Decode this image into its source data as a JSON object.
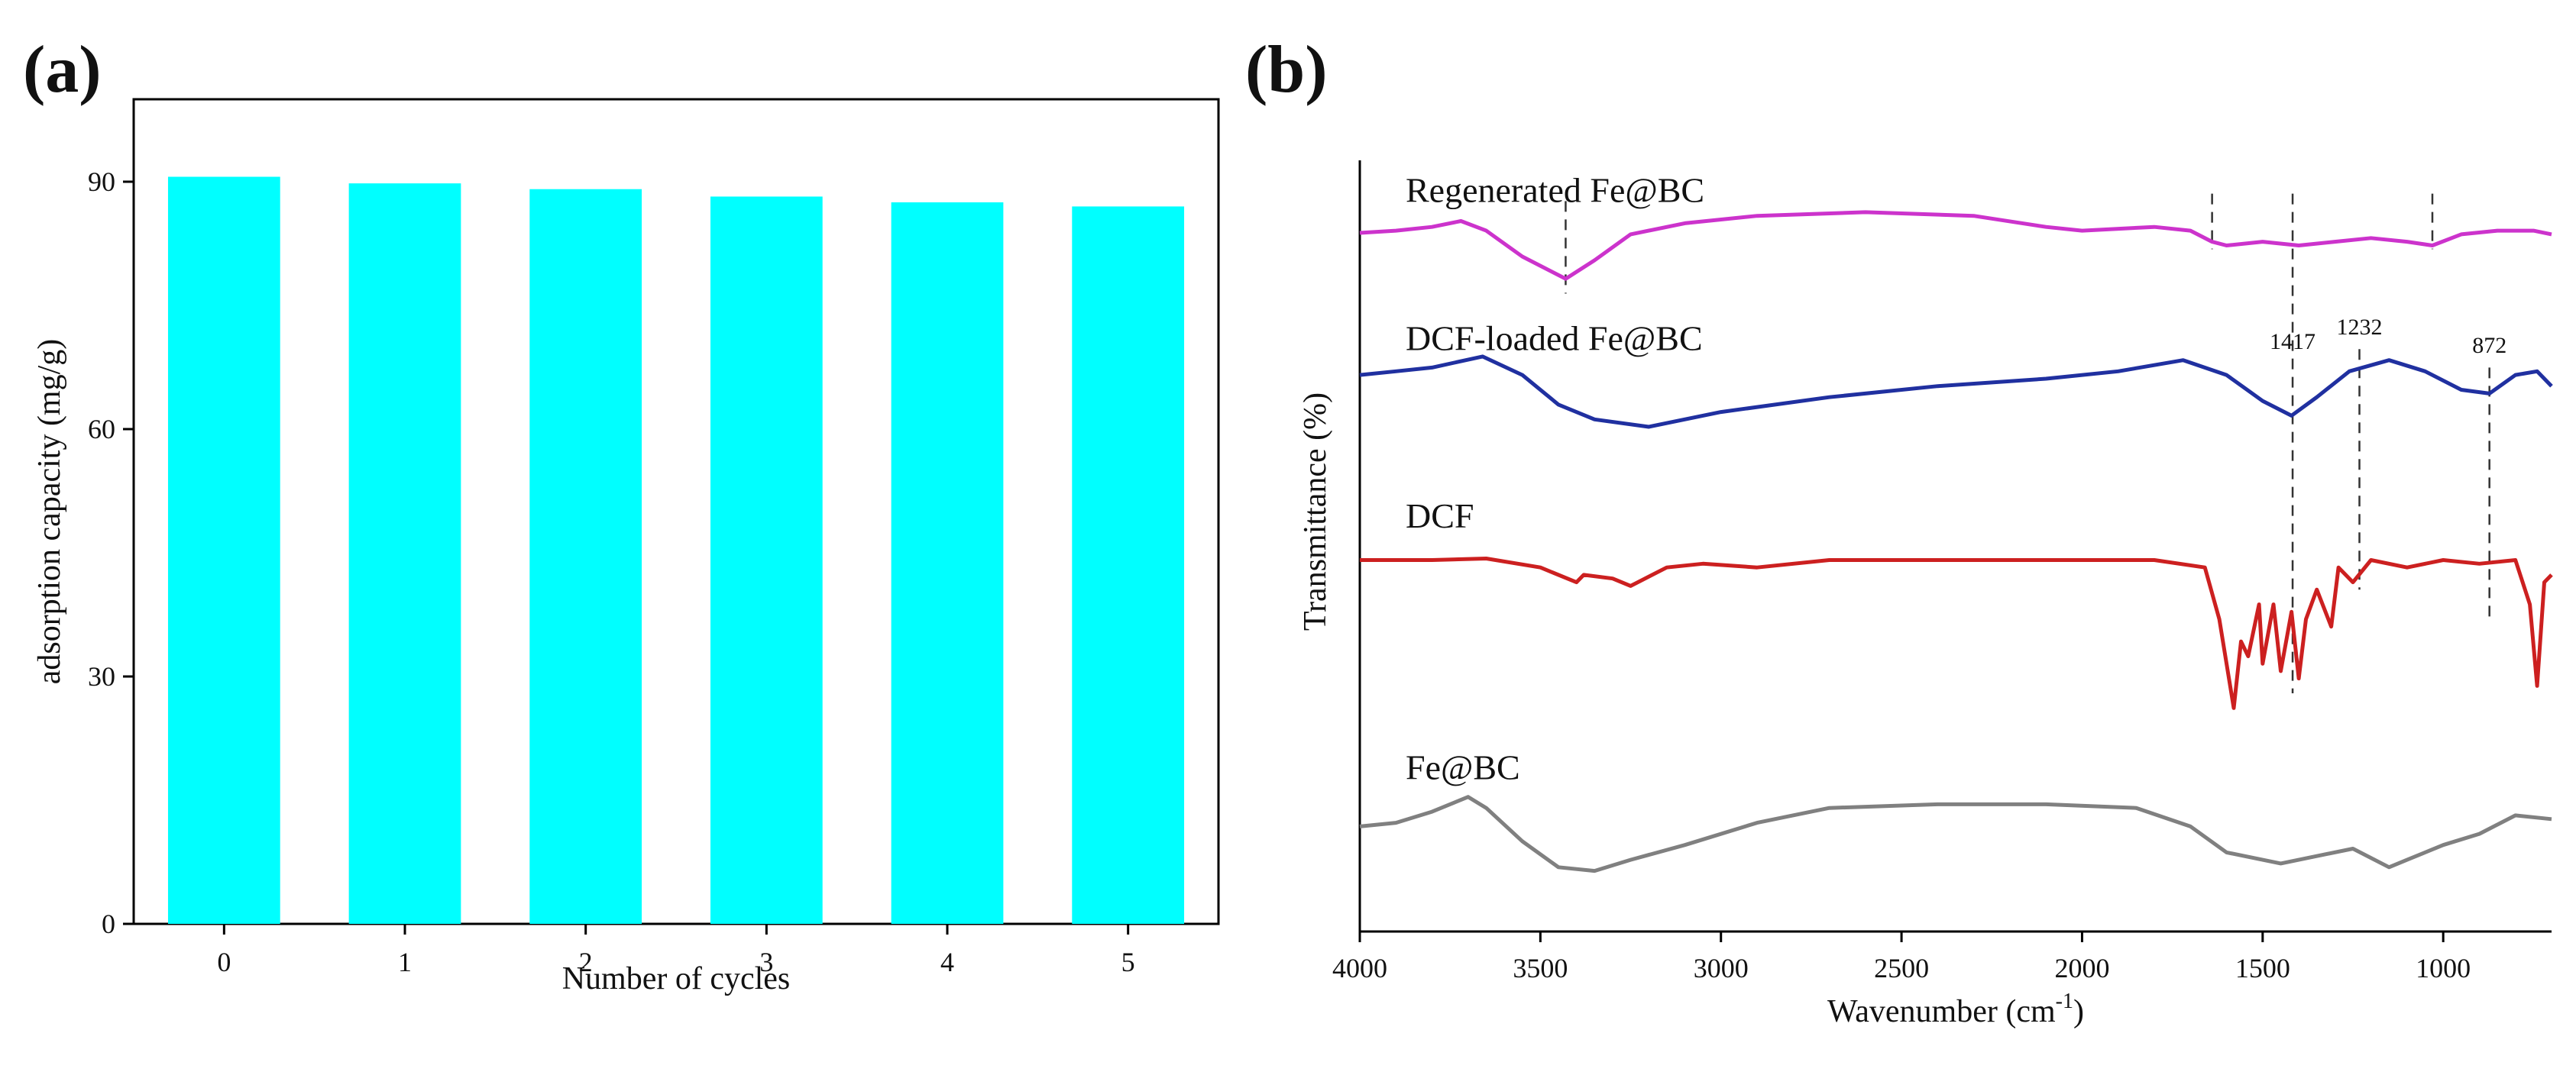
{
  "chart_data": [
    {
      "panel_label": "(a)",
      "type": "bar",
      "categories": [
        "0",
        "1",
        "2",
        "3",
        "4",
        "5"
      ],
      "values": [
        90.6,
        89.8,
        89.1,
        88.2,
        87.5,
        87.0
      ],
      "xlabel": "Number of cycles",
      "ylabel": "adsorption capacity (mg/g)",
      "ylim": [
        0,
        100
      ],
      "yticks": [
        0,
        30,
        60,
        90
      ],
      "bar_color": "#00FFFF",
      "grid": false
    },
    {
      "panel_label": "(b)",
      "type": "line",
      "xlabel": "Wavenumber (cm",
      "xlabel_sup": "-1",
      "xlabel_close": ")",
      "ylabel": "Transmittance (%)",
      "xlim": [
        4000,
        700
      ],
      "xticks": [
        4000,
        3500,
        3000,
        2500,
        2000,
        1500,
        1000
      ],
      "grid": false,
      "series": [
        {
          "name": "Regenerated Fe@BC",
          "color": "#CC33CC",
          "points": [
            [
              4000,
              8.82
            ],
            [
              3900,
              8.85
            ],
            [
              3800,
              8.9
            ],
            [
              3720,
              8.98
            ],
            [
              3650,
              8.85
            ],
            [
              3550,
              8.5
            ],
            [
              3430,
              8.2
            ],
            [
              3350,
              8.45
            ],
            [
              3250,
              8.8
            ],
            [
              3100,
              8.95
            ],
            [
              2900,
              9.05
            ],
            [
              2600,
              9.1
            ],
            [
              2300,
              9.05
            ],
            [
              2100,
              8.9
            ],
            [
              2000,
              8.85
            ],
            [
              1800,
              8.9
            ],
            [
              1700,
              8.85
            ],
            [
              1640,
              8.7
            ],
            [
              1600,
              8.65
            ],
            [
              1500,
              8.7
            ],
            [
              1400,
              8.65
            ],
            [
              1300,
              8.7
            ],
            [
              1200,
              8.75
            ],
            [
              1100,
              8.7
            ],
            [
              1030,
              8.65
            ],
            [
              950,
              8.8
            ],
            [
              850,
              8.85
            ],
            [
              750,
              8.85
            ],
            [
              700,
              8.8
            ]
          ]
        },
        {
          "name": "DCF-loaded Fe@BC",
          "color": "#2030A0",
          "points": [
            [
              4000,
              6.9
            ],
            [
              3900,
              6.95
            ],
            [
              3800,
              7.0
            ],
            [
              3660,
              7.15
            ],
            [
              3550,
              6.9
            ],
            [
              3450,
              6.5
            ],
            [
              3350,
              6.3
            ],
            [
              3200,
              6.2
            ],
            [
              3000,
              6.4
            ],
            [
              2700,
              6.6
            ],
            [
              2400,
              6.75
            ],
            [
              2100,
              6.85
            ],
            [
              1900,
              6.95
            ],
            [
              1720,
              7.1
            ],
            [
              1600,
              6.9
            ],
            [
              1500,
              6.55
            ],
            [
              1420,
              6.35
            ],
            [
              1350,
              6.6
            ],
            [
              1260,
              6.95
            ],
            [
              1150,
              7.1
            ],
            [
              1050,
              6.95
            ],
            [
              950,
              6.7
            ],
            [
              872,
              6.65
            ],
            [
              800,
              6.9
            ],
            [
              740,
              6.95
            ],
            [
              700,
              6.75
            ]
          ]
        },
        {
          "name": "DCF",
          "color": "#CC2020",
          "points": [
            [
              4000,
              4.4
            ],
            [
              3800,
              4.4
            ],
            [
              3650,
              4.42
            ],
            [
              3500,
              4.3
            ],
            [
              3400,
              4.1
            ],
            [
              3380,
              4.2
            ],
            [
              3300,
              4.15
            ],
            [
              3250,
              4.05
            ],
            [
              3150,
              4.3
            ],
            [
              3050,
              4.35
            ],
            [
              2900,
              4.3
            ],
            [
              2700,
              4.4
            ],
            [
              2300,
              4.4
            ],
            [
              1800,
              4.4
            ],
            [
              1660,
              4.3
            ],
            [
              1620,
              3.6
            ],
            [
              1580,
              2.4
            ],
            [
              1560,
              3.3
            ],
            [
              1540,
              3.1
            ],
            [
              1510,
              3.8
            ],
            [
              1500,
              3.0
            ],
            [
              1470,
              3.8
            ],
            [
              1450,
              2.9
            ],
            [
              1420,
              3.7
            ],
            [
              1400,
              2.8
            ],
            [
              1380,
              3.6
            ],
            [
              1350,
              4.0
            ],
            [
              1310,
              3.5
            ],
            [
              1290,
              4.3
            ],
            [
              1250,
              4.1
            ],
            [
              1200,
              4.4
            ],
            [
              1100,
              4.3
            ],
            [
              1000,
              4.4
            ],
            [
              900,
              4.35
            ],
            [
              800,
              4.4
            ],
            [
              760,
              3.8
            ],
            [
              740,
              2.7
            ],
            [
              720,
              4.1
            ],
            [
              700,
              4.2
            ]
          ]
        },
        {
          "name": "Fe@BC",
          "color": "#808080",
          "points": [
            [
              4000,
              0.8
            ],
            [
              3900,
              0.85
            ],
            [
              3800,
              1.0
            ],
            [
              3700,
              1.2
            ],
            [
              3650,
              1.05
            ],
            [
              3550,
              0.6
            ],
            [
              3450,
              0.25
            ],
            [
              3350,
              0.2
            ],
            [
              3250,
              0.35
            ],
            [
              3100,
              0.55
            ],
            [
              2900,
              0.85
            ],
            [
              2700,
              1.05
            ],
            [
              2400,
              1.1
            ],
            [
              2100,
              1.1
            ],
            [
              1850,
              1.05
            ],
            [
              1700,
              0.8
            ],
            [
              1600,
              0.45
            ],
            [
              1450,
              0.3
            ],
            [
              1350,
              0.4
            ],
            [
              1250,
              0.5
            ],
            [
              1150,
              0.25
            ],
            [
              1100,
              0.35
            ],
            [
              1000,
              0.55
            ],
            [
              900,
              0.7
            ],
            [
              800,
              0.95
            ],
            [
              700,
              0.9
            ]
          ]
        }
      ],
      "annotations": [
        {
          "text": "1417",
          "x": 1417
        },
        {
          "text": "1232",
          "x": 1232
        },
        {
          "text": "872",
          "x": 872
        }
      ],
      "dashed_lines": [
        1640,
        1417,
        1232,
        1030,
        872,
        3430
      ]
    }
  ]
}
